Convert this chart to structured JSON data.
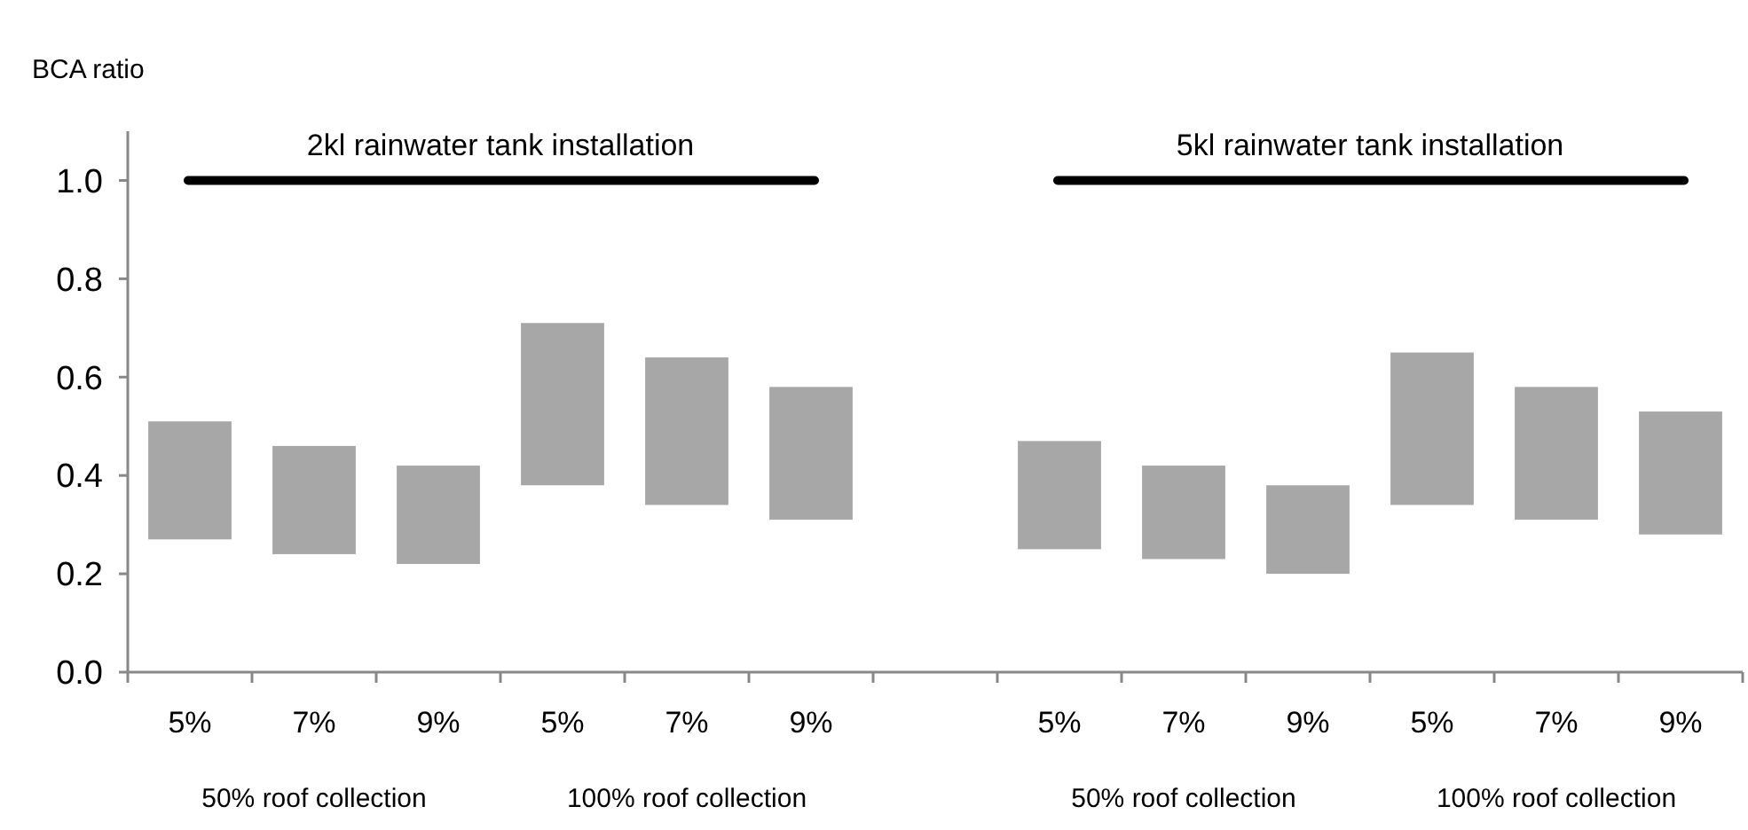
{
  "chart_data": {
    "type": "bar",
    "ylabel": "BCA ratio",
    "categories": [
      "5%",
      "7%",
      "9%",
      "5%",
      "7%",
      "9%",
      null,
      "5%",
      "7%",
      "9%",
      "5%",
      "7%",
      "9%"
    ],
    "base": [
      0.27,
      0.24,
      0.22,
      0.38,
      0.34,
      0.31,
      null,
      0.25,
      0.23,
      0.2,
      0.34,
      0.31,
      0.28
    ],
    "values": [
      0.24,
      0.22,
      0.2,
      0.33,
      0.3,
      0.27,
      null,
      0.22,
      0.19,
      0.18,
      0.31,
      0.27,
      0.25
    ],
    "color": "#a8a7a7",
    "ylim": [
      0,
      1.1
    ],
    "yticks": [
      {
        "value": 0,
        "label": "0.0"
      },
      {
        "value": 0.2,
        "label": "0.2"
      },
      {
        "value": 0.4,
        "label": "0.4"
      },
      {
        "value": 0.6,
        "label": "0.6"
      },
      {
        "value": 0.8,
        "label": "0.8"
      },
      {
        "value": 1,
        "label": "1.0"
      }
    ],
    "annotations": [
      "2kl rainwater tank installation",
      "5kl rainwater tank installation",
      "50% roof collection",
      "100% roof collection",
      "50% roof collection",
      "100% roof collection"
    ]
  }
}
